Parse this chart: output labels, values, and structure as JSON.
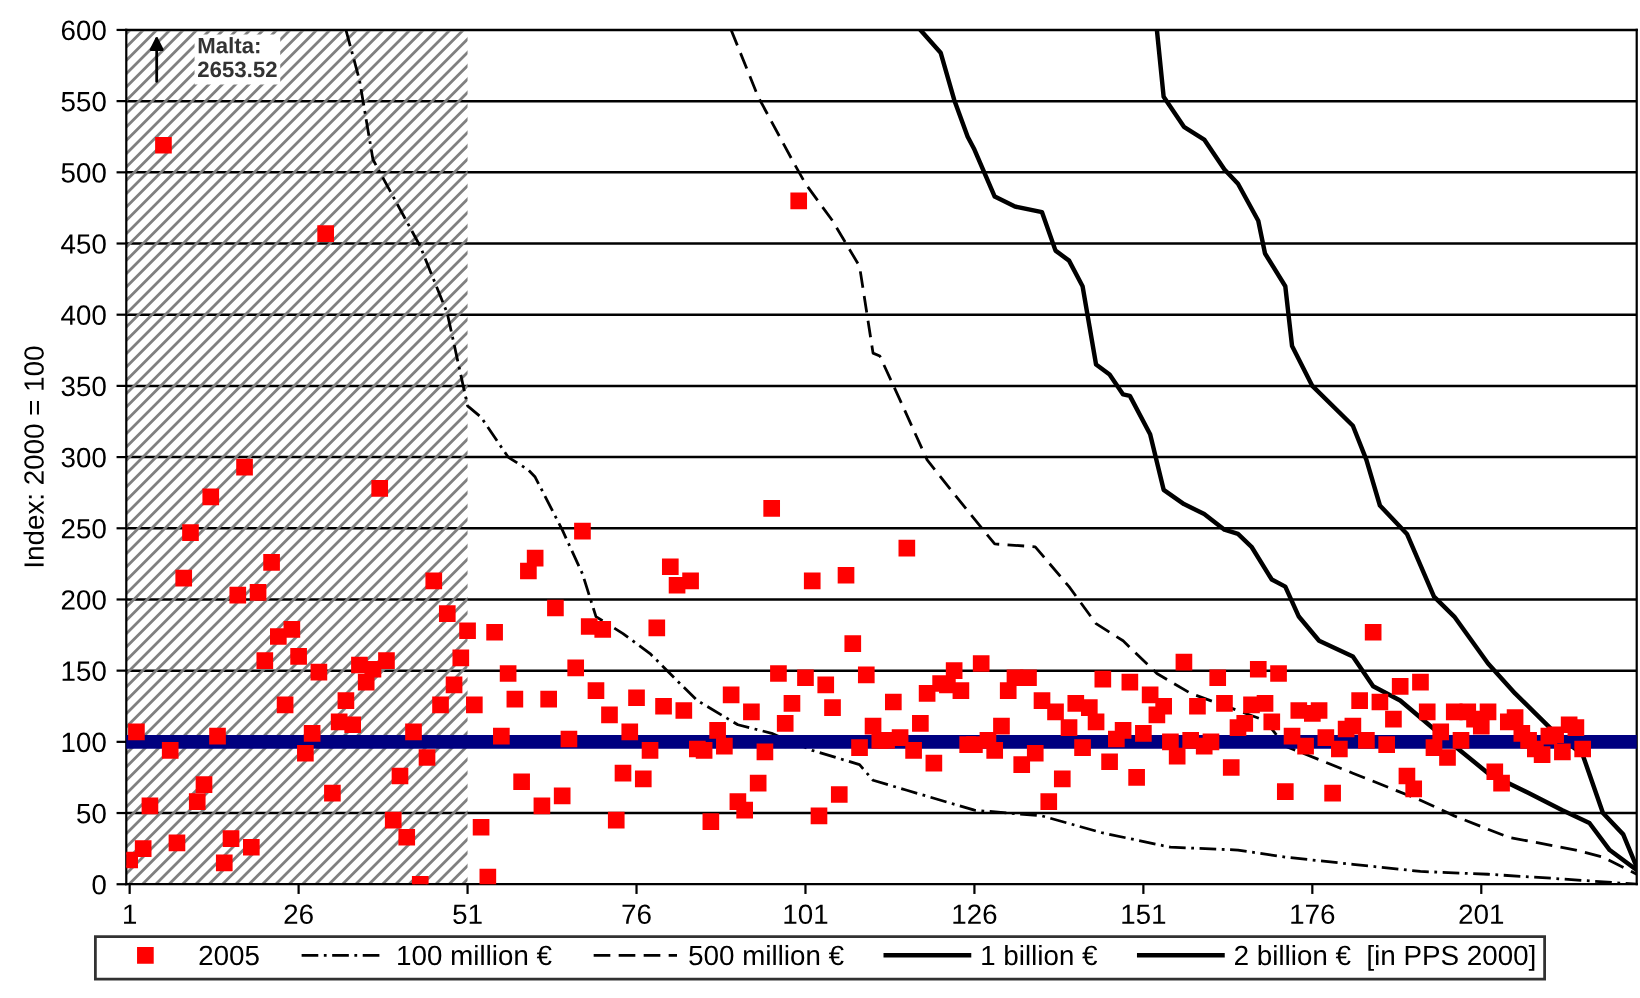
{
  "chart_data": {
    "type": "scatter",
    "ylabel": "Index: 2000 = 100",
    "xlim": [
      0.5,
      224
    ],
    "xticks": [
      1,
      26,
      51,
      76,
      101,
      126,
      151,
      176,
      201
    ],
    "ylim": [
      0,
      600
    ],
    "yticks": [
      0,
      50,
      100,
      150,
      200,
      250,
      300,
      350,
      400,
      450,
      500,
      550,
      600
    ],
    "grid": "y",
    "legend": "bottom",
    "x": [
      1,
      2,
      3,
      4,
      5,
      6,
      7,
      8,
      9,
      10,
      11,
      12,
      13,
      14,
      15,
      16,
      17,
      18,
      19,
      20,
      21,
      22,
      23,
      24,
      25,
      26,
      27,
      28,
      29,
      30,
      31,
      32,
      33,
      34,
      35,
      36,
      37,
      38,
      39,
      40,
      41,
      42,
      43,
      44,
      45,
      46,
      47,
      48,
      49,
      50,
      51,
      52,
      53,
      54,
      55,
      56,
      57,
      58,
      59,
      60,
      61,
      62,
      63,
      64,
      65,
      66,
      67,
      68,
      69,
      70,
      71,
      72,
      73,
      74,
      75,
      76,
      77,
      78,
      79,
      80,
      81,
      82,
      83,
      84,
      85,
      86,
      87,
      88,
      89,
      90,
      91,
      92,
      93,
      94,
      95,
      96,
      97,
      98,
      99,
      100,
      101,
      102,
      103,
      104,
      105,
      106,
      107,
      108,
      109,
      110,
      111,
      112,
      113,
      114,
      115,
      116,
      117,
      118,
      119,
      120,
      121,
      122,
      123,
      124,
      125,
      126,
      127,
      128,
      129,
      130,
      131,
      132,
      133,
      134,
      135,
      136,
      137,
      138,
      139,
      140,
      141,
      142,
      143,
      144,
      145,
      146,
      147,
      148,
      149,
      150,
      151,
      152,
      153,
      154,
      155,
      156,
      157,
      158,
      159,
      160,
      161,
      162,
      163,
      164,
      165,
      166,
      167,
      168,
      169,
      170,
      171,
      172,
      173,
      174,
      175,
      176,
      177,
      178,
      179,
      180,
      181,
      182,
      183,
      184,
      185,
      186,
      187,
      188,
      189,
      190,
      191,
      192,
      193,
      194,
      195,
      196,
      197,
      198,
      199,
      200,
      201,
      202,
      203,
      204,
      205,
      206,
      207,
      208,
      209,
      210,
      211,
      212,
      213,
      214,
      215,
      216
    ],
    "bands": [
      {
        "axis": "x",
        "from": 0.5,
        "to": 51,
        "color": "#808080"
      }
    ],
    "ref_lines": [
      {
        "axis": "y",
        "value": 100,
        "color": "#000080"
      }
    ],
    "annotations": [
      {
        "text": "Malta:\n2653.52",
        "x": 5,
        "y": 600
      }
    ],
    "series": [
      {
        "name": "2005",
        "marker": "square",
        "color": "#ff0000",
        "values": [
          17,
          107,
          25,
          55,
          null,
          519,
          94,
          29,
          215,
          247,
          58,
          70,
          272,
          104,
          15,
          32,
          203,
          293,
          26,
          205,
          157,
          226,
          174,
          126,
          179,
          160,
          92,
          106,
          149,
          457,
          64,
          114,
          129,
          112,
          154,
          142,
          151,
          278,
          157,
          45,
          76,
          33,
          107,
          0,
          89,
          213,
          126,
          190,
          140,
          159,
          178,
          126,
          40,
          5,
          177,
          104,
          148,
          130,
          72,
          220,
          229,
          55,
          130,
          194,
          62,
          102,
          152,
          248,
          181,
          136,
          179,
          119,
          45,
          78,
          107,
          131,
          74,
          94,
          180,
          125,
          223,
          210,
          122,
          213,
          95,
          94,
          44,
          108,
          97,
          133,
          58,
          52,
          121,
          71,
          93,
          264,
          148,
          113,
          127,
          480,
          145,
          213,
          48,
          140,
          124,
          63,
          217,
          169,
          96,
          147,
          111,
          101,
          101,
          128,
          103,
          236,
          94,
          113,
          134,
          85,
          141,
          140,
          150,
          136,
          98,
          98,
          155,
          101,
          94,
          111,
          136,
          145,
          84,
          145,
          92,
          129,
          58,
          121,
          74,
          110,
          127,
          96,
          124,
          114,
          144,
          86,
          102,
          108,
          142,
          75,
          106,
          133,
          119,
          125,
          100,
          90,
          156,
          101,
          125,
          97,
          100,
          145,
          127,
          82,
          110,
          113,
          126,
          151,
          127,
          114,
          148,
          65,
          104,
          122,
          97,
          120,
          122,
          103,
          64,
          95,
          109,
          111,
          129,
          101,
          177,
          128,
          98,
          116,
          139,
          76,
          67,
          142,
          121,
          96,
          107,
          89,
          121,
          101,
          121,
          116,
          111,
          121,
          79,
          71,
          114,
          117,
          106,
          101,
          95,
          91,
          104,
          105,
          93,
          112,
          110,
          95
        ]
      },
      {
        "name": "100 million €",
        "type": "line",
        "marker": "none",
        "line_style": "dashdot",
        "color": "#000000",
        "x": [
          33,
          35,
          37,
          44,
          48,
          51,
          53,
          57,
          60,
          61,
          65,
          68,
          70,
          74,
          78,
          82,
          85,
          91,
          96,
          102,
          109,
          111,
          116,
          126,
          136,
          145,
          155,
          165,
          172,
          182,
          192,
          202,
          212,
          224
        ],
        "values": [
          600,
          565,
          509,
          448,
          401,
          336,
          328,
          300,
          291,
          286,
          249,
          218,
          188,
          176,
          162,
          143,
          129,
          112,
          106,
          94,
          84,
          73,
          66,
          52,
          48,
          36,
          26,
          24,
          19,
          14,
          9,
          7,
          4,
          0
        ]
      },
      {
        "name": "500 million €",
        "type": "line",
        "marker": "none",
        "line_style": "dashed",
        "color": "#000000",
        "x": [
          90,
          94,
          99,
          101,
          105,
          109,
          111,
          112,
          115,
          119,
          123,
          129,
          135,
          140,
          144,
          148,
          153,
          158,
          165,
          169,
          172,
          182,
          192,
          197,
          205,
          215,
          219,
          224
        ],
        "values": [
          600,
          553,
          509,
          492,
          466,
          434,
          373,
          371,
          340,
          298,
          274,
          239,
          237,
          209,
          183,
          171,
          148,
          134,
          122,
          115,
          97,
          78,
          59,
          48,
          33,
          24,
          19,
          7
        ]
      },
      {
        "name": "1 billion €",
        "type": "line",
        "marker": "none",
        "line_style": "solid",
        "color": "#000000",
        "x": [
          118,
          121,
          123,
          125,
          126,
          129,
          132,
          136,
          138,
          140,
          142,
          144,
          146,
          148,
          149,
          152,
          154,
          157,
          160,
          163,
          165,
          167,
          170,
          172,
          174,
          177,
          182,
          185,
          189,
          195,
          202,
          208,
          213,
          217,
          220,
          224
        ],
        "values": [
          600,
          584,
          551,
          525,
          516,
          483,
          476,
          472,
          445,
          438,
          420,
          365,
          358,
          344,
          343,
          316,
          277,
          267,
          260,
          249,
          246,
          237,
          214,
          209,
          188,
          171,
          160,
          139,
          129,
          105,
          78,
          64,
          52,
          43,
          24,
          10
        ]
      },
      {
        "name": "2 billion €  [in PPS 2000]",
        "type": "line",
        "marker": "none",
        "line_style": "solid",
        "color": "#000000",
        "x": [
          153,
          154,
          157,
          160,
          163,
          165,
          168,
          169,
          172,
          173,
          176,
          182,
          184,
          186,
          190,
          194,
          197,
          202,
          206,
          209,
          212,
          216,
          219,
          222,
          224
        ],
        "values": [
          600,
          553,
          532,
          523,
          502,
          492,
          466,
          443,
          420,
          378,
          350,
          322,
          298,
          266,
          246,
          202,
          188,
          155,
          134,
          120,
          106,
          91,
          50,
          35,
          12
        ]
      }
    ]
  }
}
